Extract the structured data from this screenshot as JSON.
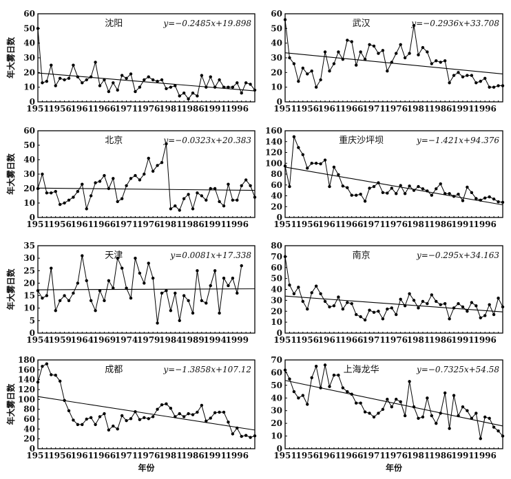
{
  "chart_data": [
    {
      "type": "line",
      "title": "沈阳",
      "equation": "y=−0.2485x+19.898",
      "slope": -0.2485,
      "intercept": 19.898,
      "ylabel": "年大雾日数",
      "xlabel": "",
      "start_year": 1951,
      "xlim": [
        1951,
        2000
      ],
      "ylim": [
        0,
        60
      ],
      "yticks": [
        "0",
        "10",
        "20",
        "30",
        "40",
        "50",
        "60"
      ],
      "xticks": [
        "1951",
        "1956",
        "1961",
        "1966",
        "1971",
        "1976",
        "1981",
        "1986",
        "1991",
        "1996"
      ],
      "values": [
        50,
        13,
        14,
        25,
        11,
        16,
        15,
        16,
        25,
        17,
        13,
        15,
        17,
        27,
        11,
        15,
        7,
        13,
        8,
        18,
        16,
        19,
        7,
        10,
        15,
        17,
        15,
        14,
        15,
        9,
        10,
        11,
        4,
        6,
        2,
        6,
        4,
        18,
        10,
        17,
        10,
        15,
        10,
        10,
        10,
        13,
        6,
        13,
        12,
        8
      ]
    },
    {
      "type": "line",
      "title": "武汉",
      "equation": "y=−0.2936x+33.708",
      "slope": -0.2936,
      "intercept": 33.708,
      "ylabel": "",
      "xlabel": "",
      "start_year": 1951,
      "xlim": [
        1951,
        2000
      ],
      "ylim": [
        0,
        60
      ],
      "yticks": [
        "0",
        "10",
        "20",
        "30",
        "40",
        "50",
        "60"
      ],
      "xticks": [
        "1951",
        "1956",
        "1961",
        "1966",
        "1971",
        "1976",
        "1981",
        "1986",
        "1991",
        "1996"
      ],
      "values": [
        56,
        30,
        26,
        14,
        23,
        19,
        21,
        10,
        15,
        34,
        21,
        26,
        34,
        29,
        42,
        41,
        25,
        34,
        29,
        39,
        38,
        33,
        35,
        21,
        27,
        33,
        39,
        30,
        33,
        52,
        32,
        37,
        34,
        26,
        28,
        27,
        28,
        13,
        18,
        20,
        17,
        18,
        18,
        13,
        14,
        16,
        10,
        10,
        11,
        11
      ]
    },
    {
      "type": "line",
      "title": "北京",
      "equation": "y=−0.0323x+20.383",
      "slope": -0.0323,
      "intercept": 20.383,
      "ylabel": "年大雾日数",
      "xlabel": "",
      "start_year": 1951,
      "xlim": [
        1951,
        2000
      ],
      "ylim": [
        0,
        60
      ],
      "yticks": [
        "0",
        "10",
        "20",
        "30",
        "40",
        "50",
        "60"
      ],
      "xticks": [
        "1951",
        "1956",
        "1961",
        "1966",
        "1971",
        "1976",
        "1981",
        "1986",
        "1991",
        "1996"
      ],
      "values": [
        20,
        30,
        17,
        17,
        18,
        9,
        10,
        12,
        14,
        18,
        23,
        6,
        15,
        24,
        25,
        29,
        20,
        27,
        11,
        13,
        22,
        27,
        29,
        26,
        30,
        41,
        32,
        36,
        38,
        51,
        6,
        8,
        5,
        13,
        16,
        6,
        17,
        15,
        12,
        20,
        20,
        11,
        8,
        23,
        12,
        12,
        22,
        26,
        22,
        14
      ]
    },
    {
      "type": "line",
      "title": "重庆沙坪坝",
      "equation": "y=−1.421x+94.376",
      "slope": -1.421,
      "intercept": 94.376,
      "ylabel": "",
      "xlabel": "",
      "start_year": 1951,
      "xlim": [
        1951,
        2000
      ],
      "ylim": [
        0,
        160
      ],
      "yticks": [
        "0",
        "20",
        "40",
        "60",
        "80",
        "100",
        "120",
        "140",
        "160"
      ],
      "xticks": [
        "1951",
        "1956",
        "1961",
        "1966",
        "1971",
        "1976",
        "1981",
        "1986",
        "1991",
        "1996"
      ],
      "values": [
        95,
        57,
        149,
        129,
        116,
        91,
        100,
        100,
        99,
        106,
        57,
        93,
        79,
        58,
        55,
        41,
        41,
        43,
        30,
        54,
        57,
        64,
        46,
        45,
        54,
        44,
        59,
        44,
        58,
        50,
        57,
        53,
        49,
        41,
        53,
        62,
        44,
        44,
        39,
        43,
        31,
        56,
        46,
        35,
        32,
        36,
        38,
        34,
        29,
        28
      ]
    },
    {
      "type": "line",
      "title": "天津",
      "equation": "y=0.0081x+17.338",
      "slope": 0.0081,
      "intercept": 17.338,
      "ylabel": "年大雾日数",
      "xlabel": "",
      "start_year": 1954,
      "xlim": [
        1954,
        2000
      ],
      "ylim": [
        0,
        35
      ],
      "yticks": [
        "0",
        "5",
        "10",
        "15",
        "20",
        "25",
        "30",
        "35"
      ],
      "xticks": [
        "1954",
        "1959",
        "1964",
        "1969",
        "1974",
        "1979",
        "1984",
        "1989",
        "1994",
        "1999"
      ],
      "values": [
        17,
        14,
        15,
        26,
        9,
        13,
        15,
        13,
        16,
        20,
        31,
        21,
        13,
        9,
        17,
        13,
        21,
        18,
        30,
        26,
        18,
        14,
        30,
        24,
        20,
        28,
        22,
        4,
        16,
        17,
        9,
        16,
        5,
        15,
        13,
        8,
        25,
        13,
        12,
        19,
        25,
        8,
        22,
        19,
        22,
        16,
        27
      ]
    },
    {
      "type": "line",
      "title": "南京",
      "equation": "y=−0.295x+34.163",
      "slope": -0.295,
      "intercept": 34.163,
      "ylabel": "",
      "xlabel": "",
      "start_year": 1951,
      "xlim": [
        1951,
        2000
      ],
      "ylim": [
        0,
        80
      ],
      "yticks": [
        "0",
        "10",
        "20",
        "30",
        "40",
        "50",
        "60",
        "70",
        "80"
      ],
      "xticks": [
        "1951",
        "1956",
        "1961",
        "1966",
        "1971",
        "1976",
        "1981",
        "1986",
        "1991",
        "1996"
      ],
      "values": [
        70,
        44,
        36,
        42,
        29,
        22,
        37,
        43,
        36,
        29,
        24,
        25,
        33,
        22,
        28,
        27,
        17,
        15,
        12,
        21,
        19,
        20,
        13,
        22,
        23,
        17,
        31,
        25,
        36,
        30,
        23,
        29,
        27,
        35,
        29,
        26,
        27,
        13,
        23,
        27,
        24,
        20,
        28,
        25,
        14,
        16,
        26,
        17,
        32,
        24
      ]
    },
    {
      "type": "line",
      "title": "成都",
      "equation": "y=−1.3858x+107.12",
      "slope": -1.3858,
      "intercept": 107.12,
      "ylabel": "年大雾日数",
      "xlabel": "年份",
      "start_year": 1951,
      "xlim": [
        1951,
        2000
      ],
      "ylim": [
        0,
        180
      ],
      "yticks": [
        "0",
        "20",
        "40",
        "60",
        "80",
        "100",
        "120",
        "140",
        "160",
        "180"
      ],
      "xticks": [
        "1951",
        "1956",
        "1961",
        "1966",
        "1971",
        "1976",
        "1981",
        "1986",
        "1991",
        "1996"
      ],
      "values": [
        135,
        167,
        172,
        150,
        149,
        137,
        98,
        77,
        58,
        49,
        49,
        60,
        63,
        49,
        65,
        71,
        38,
        46,
        40,
        67,
        57,
        61,
        75,
        59,
        63,
        61,
        65,
        80,
        89,
        91,
        82,
        65,
        71,
        65,
        71,
        69,
        74,
        88,
        56,
        62,
        73,
        74,
        74,
        54,
        30,
        42,
        25,
        27,
        23,
        26
      ]
    },
    {
      "type": "line",
      "title": "上海龙华",
      "equation": "y=−0.7325x+54.58",
      "slope": -0.7325,
      "intercept": 54.58,
      "ylabel": "",
      "xlabel": "年份",
      "start_year": 1951,
      "xlim": [
        1951,
        2000
      ],
      "ylim": [
        0,
        70
      ],
      "yticks": [
        "0",
        "10",
        "20",
        "30",
        "40",
        "50",
        "60",
        "70"
      ],
      "xticks": [
        "1951",
        "1956",
        "1961",
        "1966",
        "1971",
        "1976",
        "1981",
        "1986",
        "1991",
        "1996"
      ],
      "values": [
        62,
        55,
        45,
        40,
        42,
        35,
        56,
        65,
        48,
        66,
        49,
        58,
        58,
        48,
        45,
        43,
        36,
        36,
        29,
        28,
        25,
        28,
        31,
        39,
        33,
        39,
        37,
        26,
        53,
        33,
        24,
        25,
        40,
        26,
        20,
        28,
        44,
        16,
        42,
        26,
        33,
        30,
        24,
        28,
        8,
        25,
        24,
        17,
        14,
        10
      ]
    }
  ]
}
